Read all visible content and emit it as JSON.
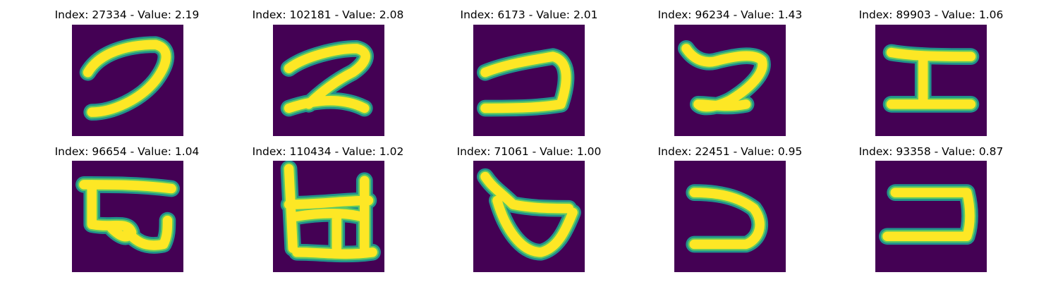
{
  "colors": {
    "background": "#440154",
    "stroke_core": "#fde725",
    "stroke_edge": "#21918c",
    "stroke_mid": "#5ec962"
  },
  "panels": [
    {
      "title": "Index: 27334 - Value: 2.19",
      "glyph": "curved-stroke-glyph"
    },
    {
      "title": "Index: 102181 - Value: 2.08",
      "glyph": "z-like-stroke-glyph"
    },
    {
      "title": "Index: 6173 - Value: 2.01",
      "glyph": "hook-stroke-glyph"
    },
    {
      "title": "Index: 96234 - Value: 1.43",
      "glyph": "wavy-stroke-glyph"
    },
    {
      "title": "Index: 89903 - Value: 1.06",
      "glyph": "i-beam-glyph"
    },
    {
      "title": "Index: 96654 - Value: 1.04",
      "glyph": "boxy-stroke-glyph"
    },
    {
      "title": "Index: 110434 - Value: 1.02",
      "glyph": "grid-stroke-glyph"
    },
    {
      "title": "Index: 71061 - Value: 1.00",
      "glyph": "cup-stroke-glyph"
    },
    {
      "title": "Index: 22451 - Value: 0.95",
      "glyph": "reversed-c-glyph"
    },
    {
      "title": "Index: 93358 - Value: 0.87",
      "glyph": "bracket-stroke-glyph"
    }
  ]
}
